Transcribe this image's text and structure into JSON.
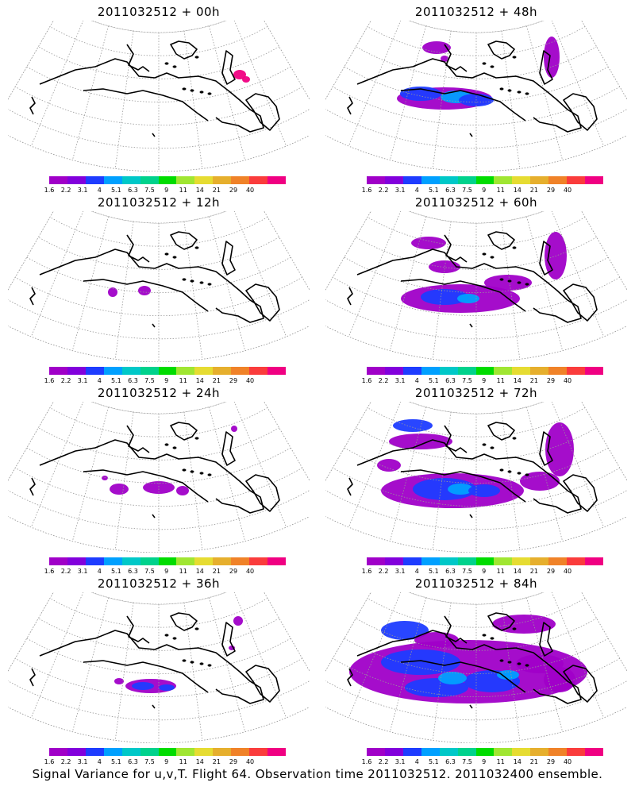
{
  "legend": {
    "colors": [
      "#a000c8",
      "#8200dc",
      "#1e3cff",
      "#00a0ff",
      "#00c8c8",
      "#00d28c",
      "#00dc00",
      "#a0e632",
      "#e6dc32",
      "#e6af2d",
      "#f08228",
      "#fa3c3c",
      "#f00082"
    ],
    "labels": [
      "1.6",
      "2.2",
      "3.1",
      "4",
      "5.1",
      "6.3",
      "7.5",
      "9",
      "11",
      "14",
      "21",
      "29",
      "40"
    ]
  },
  "panels": [
    {
      "title": "2011032512 + 00h",
      "level": 0
    },
    {
      "title": "2011032512 + 48h",
      "level": 4
    },
    {
      "title": "2011032512 + 12h",
      "level": 1
    },
    {
      "title": "2011032512 + 60h",
      "level": 5
    },
    {
      "title": "2011032512 + 24h",
      "level": 2
    },
    {
      "title": "2011032512 + 72h",
      "level": 6
    },
    {
      "title": "2011032512 + 36h",
      "level": 3
    },
    {
      "title": "2011032512 + 84h",
      "level": 7
    }
  ],
  "caption": "Signal Variance for u,v,T. Flight 64. Observation time 2011032512. 2011032400 ensemble."
}
